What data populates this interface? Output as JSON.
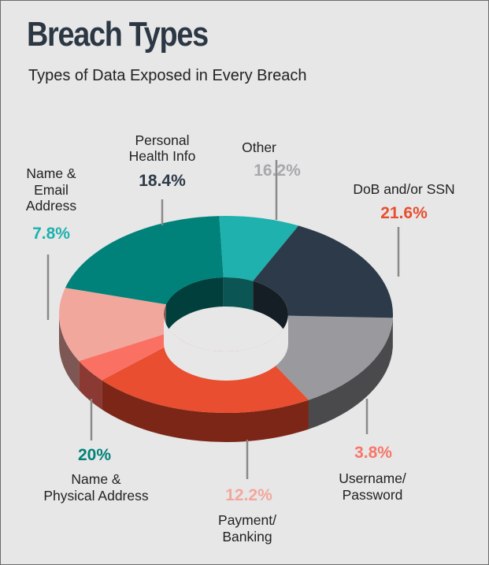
{
  "header": {
    "title": "Breach Types",
    "subtitle": "Types of Data Exposed in Every Breach"
  },
  "chart_data": {
    "type": "pie",
    "title": "Breach Types",
    "subtitle": "Types of Data Exposed in Every Breach",
    "unit": "%",
    "slices": [
      {
        "label_lines": [
          "Other"
        ],
        "value": 16.2,
        "display": "16.2%",
        "color": "#9a9a9e",
        "side_color": "#4a4a4d",
        "pct_color": "#a9a9ad"
      },
      {
        "label_lines": [
          "DoB and/or SSN"
        ],
        "value": 21.6,
        "display": "21.6%",
        "color": "#e84e2f",
        "side_color": "#7c2617",
        "pct_color": "#e84e2f"
      },
      {
        "label_lines": [
          "Username/",
          "Password"
        ],
        "value": 3.8,
        "display": "3.8%",
        "color": "#fa7163",
        "side_color": "#8a3a33",
        "pct_color": "#f6776a"
      },
      {
        "label_lines": [
          "Payment/",
          "Banking"
        ],
        "value": 12.2,
        "display": "12.2%",
        "color": "#f2a79d",
        "side_color": "#7d5754",
        "pct_color": "#f2a79d"
      },
      {
        "label_lines": [
          "Name &",
          "Physical Address"
        ],
        "value": 20,
        "display": "20%",
        "color": "#00827a",
        "side_color": "#013f3c",
        "pct_color": "#00827a"
      },
      {
        "label_lines": [
          "Name &",
          "Email",
          "Address"
        ],
        "value": 7.8,
        "display": "7.8%",
        "color": "#1eb1ae",
        "side_color": "#0b5654",
        "pct_color": "#1eb1ae"
      },
      {
        "label_lines": [
          "Personal",
          "Health Info"
        ],
        "value": 18.4,
        "display": "18.4%",
        "color": "#2c3a49",
        "side_color": "#151d25",
        "pct_color": "#2c3a49"
      }
    ]
  }
}
